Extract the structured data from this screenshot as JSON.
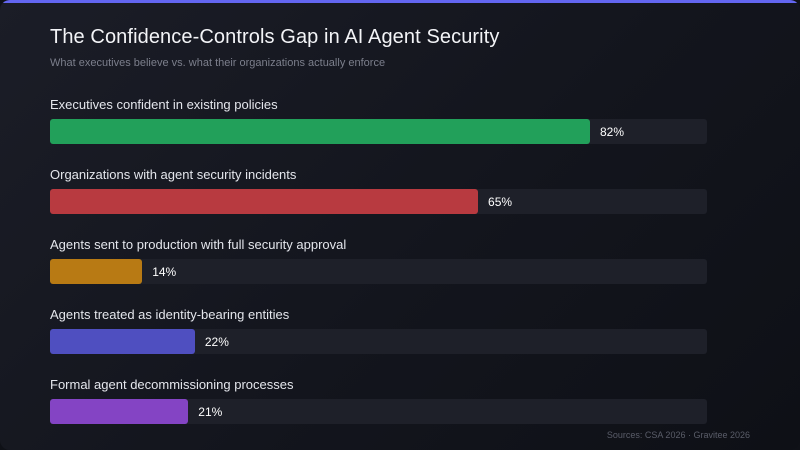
{
  "chart_data": {
    "type": "bar",
    "orientation": "horizontal",
    "title": "The Confidence-Controls Gap in AI Agent Security",
    "subtitle": "What executives believe vs. what their organizations actually enforce",
    "categories": [
      "Executives confident in existing policies",
      "Organizations with agent security incidents",
      "Agents sent to production with full security approval",
      "Agents treated as identity-bearing entities",
      "Formal agent decommissioning processes"
    ],
    "values": [
      82,
      65,
      14,
      22,
      21
    ],
    "value_labels": [
      "82%",
      "65%",
      "14%",
      "22%",
      "21%"
    ],
    "unit": "%",
    "xlim": [
      0,
      100
    ],
    "colors": [
      "#22a05a",
      "#b83a40",
      "#b87a14",
      "#4f4fc0",
      "#8444c4"
    ],
    "grid": false,
    "legend": "none",
    "source": "Sources: CSA 2026 · Gravitee 2026"
  },
  "theme": {
    "background": "#13151d",
    "accent": "#6366f1",
    "track": "#1e2029"
  }
}
